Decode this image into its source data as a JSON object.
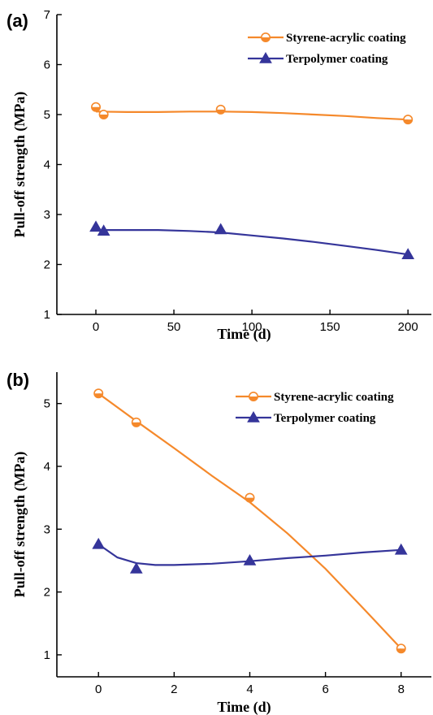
{
  "chart_data": [
    {
      "type": "line",
      "panel_label": "(a)",
      "xlabel": "Time (d)",
      "ylabel": "Pull-off strength (MPa)",
      "xlim": [
        -25,
        215
      ],
      "ylim": [
        1,
        7
      ],
      "xticks": [
        0,
        50,
        100,
        150,
        200
      ],
      "yticks": [
        1,
        2,
        3,
        4,
        5,
        6,
        7
      ],
      "legend_position": "top-right",
      "series": [
        {
          "name": "Styrene-acrylic coating",
          "color": "#f5892b",
          "marker": "half-filled-circle",
          "points": [
            [
              0,
              5.15
            ],
            [
              5,
              5.0
            ],
            [
              80,
              5.1
            ],
            [
              200,
              4.9
            ]
          ],
          "curve": [
            [
              0,
              5.06
            ],
            [
              20,
              5.05
            ],
            [
              40,
              5.05
            ],
            [
              60,
              5.06
            ],
            [
              80,
              5.06
            ],
            [
              100,
              5.05
            ],
            [
              120,
              5.03
            ],
            [
              140,
              5.0
            ],
            [
              160,
              4.97
            ],
            [
              180,
              4.93
            ],
            [
              200,
              4.9
            ]
          ]
        },
        {
          "name": "Terpolymer coating",
          "color": "#35359a",
          "marker": "filled-triangle",
          "points": [
            [
              0,
              2.75
            ],
            [
              5,
              2.67
            ],
            [
              80,
              2.7
            ],
            [
              200,
              2.2
            ]
          ],
          "curve": [
            [
              0,
              2.69
            ],
            [
              20,
              2.69
            ],
            [
              40,
              2.69
            ],
            [
              60,
              2.67
            ],
            [
              80,
              2.64
            ],
            [
              100,
              2.58
            ],
            [
              120,
              2.52
            ],
            [
              140,
              2.45
            ],
            [
              160,
              2.37
            ],
            [
              180,
              2.29
            ],
            [
              200,
              2.2
            ]
          ]
        }
      ]
    },
    {
      "type": "line",
      "panel_label": "(b)",
      "xlabel": "Time (d)",
      "ylabel": "Pull-off strength (MPa)",
      "xlim": [
        -1.1,
        8.8
      ],
      "ylim": [
        0.65,
        5.5
      ],
      "xticks": [
        0,
        2,
        4,
        6,
        8
      ],
      "yticks": [
        1,
        2,
        3,
        4,
        5
      ],
      "legend_position": "top-right",
      "series": [
        {
          "name": "Styrene-acrylic coating",
          "color": "#f5892b",
          "marker": "half-filled-circle",
          "points": [
            [
              0,
              5.16
            ],
            [
              1,
              4.7
            ],
            [
              4,
              3.5
            ],
            [
              8,
              1.1
            ]
          ],
          "curve": [
            [
              0,
              5.16
            ],
            [
              1,
              4.72
            ],
            [
              2,
              4.29
            ],
            [
              3,
              3.85
            ],
            [
              4,
              3.43
            ],
            [
              5,
              2.93
            ],
            [
              6,
              2.37
            ],
            [
              7,
              1.74
            ],
            [
              8,
              1.1
            ]
          ]
        },
        {
          "name": "Terpolymer coating",
          "color": "#35359a",
          "marker": "filled-triangle",
          "points": [
            [
              0,
              2.76
            ],
            [
              1,
              2.37
            ],
            [
              4,
              2.5
            ],
            [
              8,
              2.67
            ]
          ],
          "curve": [
            [
              0,
              2.76
            ],
            [
              0.5,
              2.55
            ],
            [
              1,
              2.46
            ],
            [
              1.5,
              2.43
            ],
            [
              2,
              2.43
            ],
            [
              3,
              2.45
            ],
            [
              4,
              2.49
            ],
            [
              5,
              2.54
            ],
            [
              6,
              2.58
            ],
            [
              7,
              2.63
            ],
            [
              8,
              2.67
            ]
          ]
        }
      ]
    }
  ]
}
